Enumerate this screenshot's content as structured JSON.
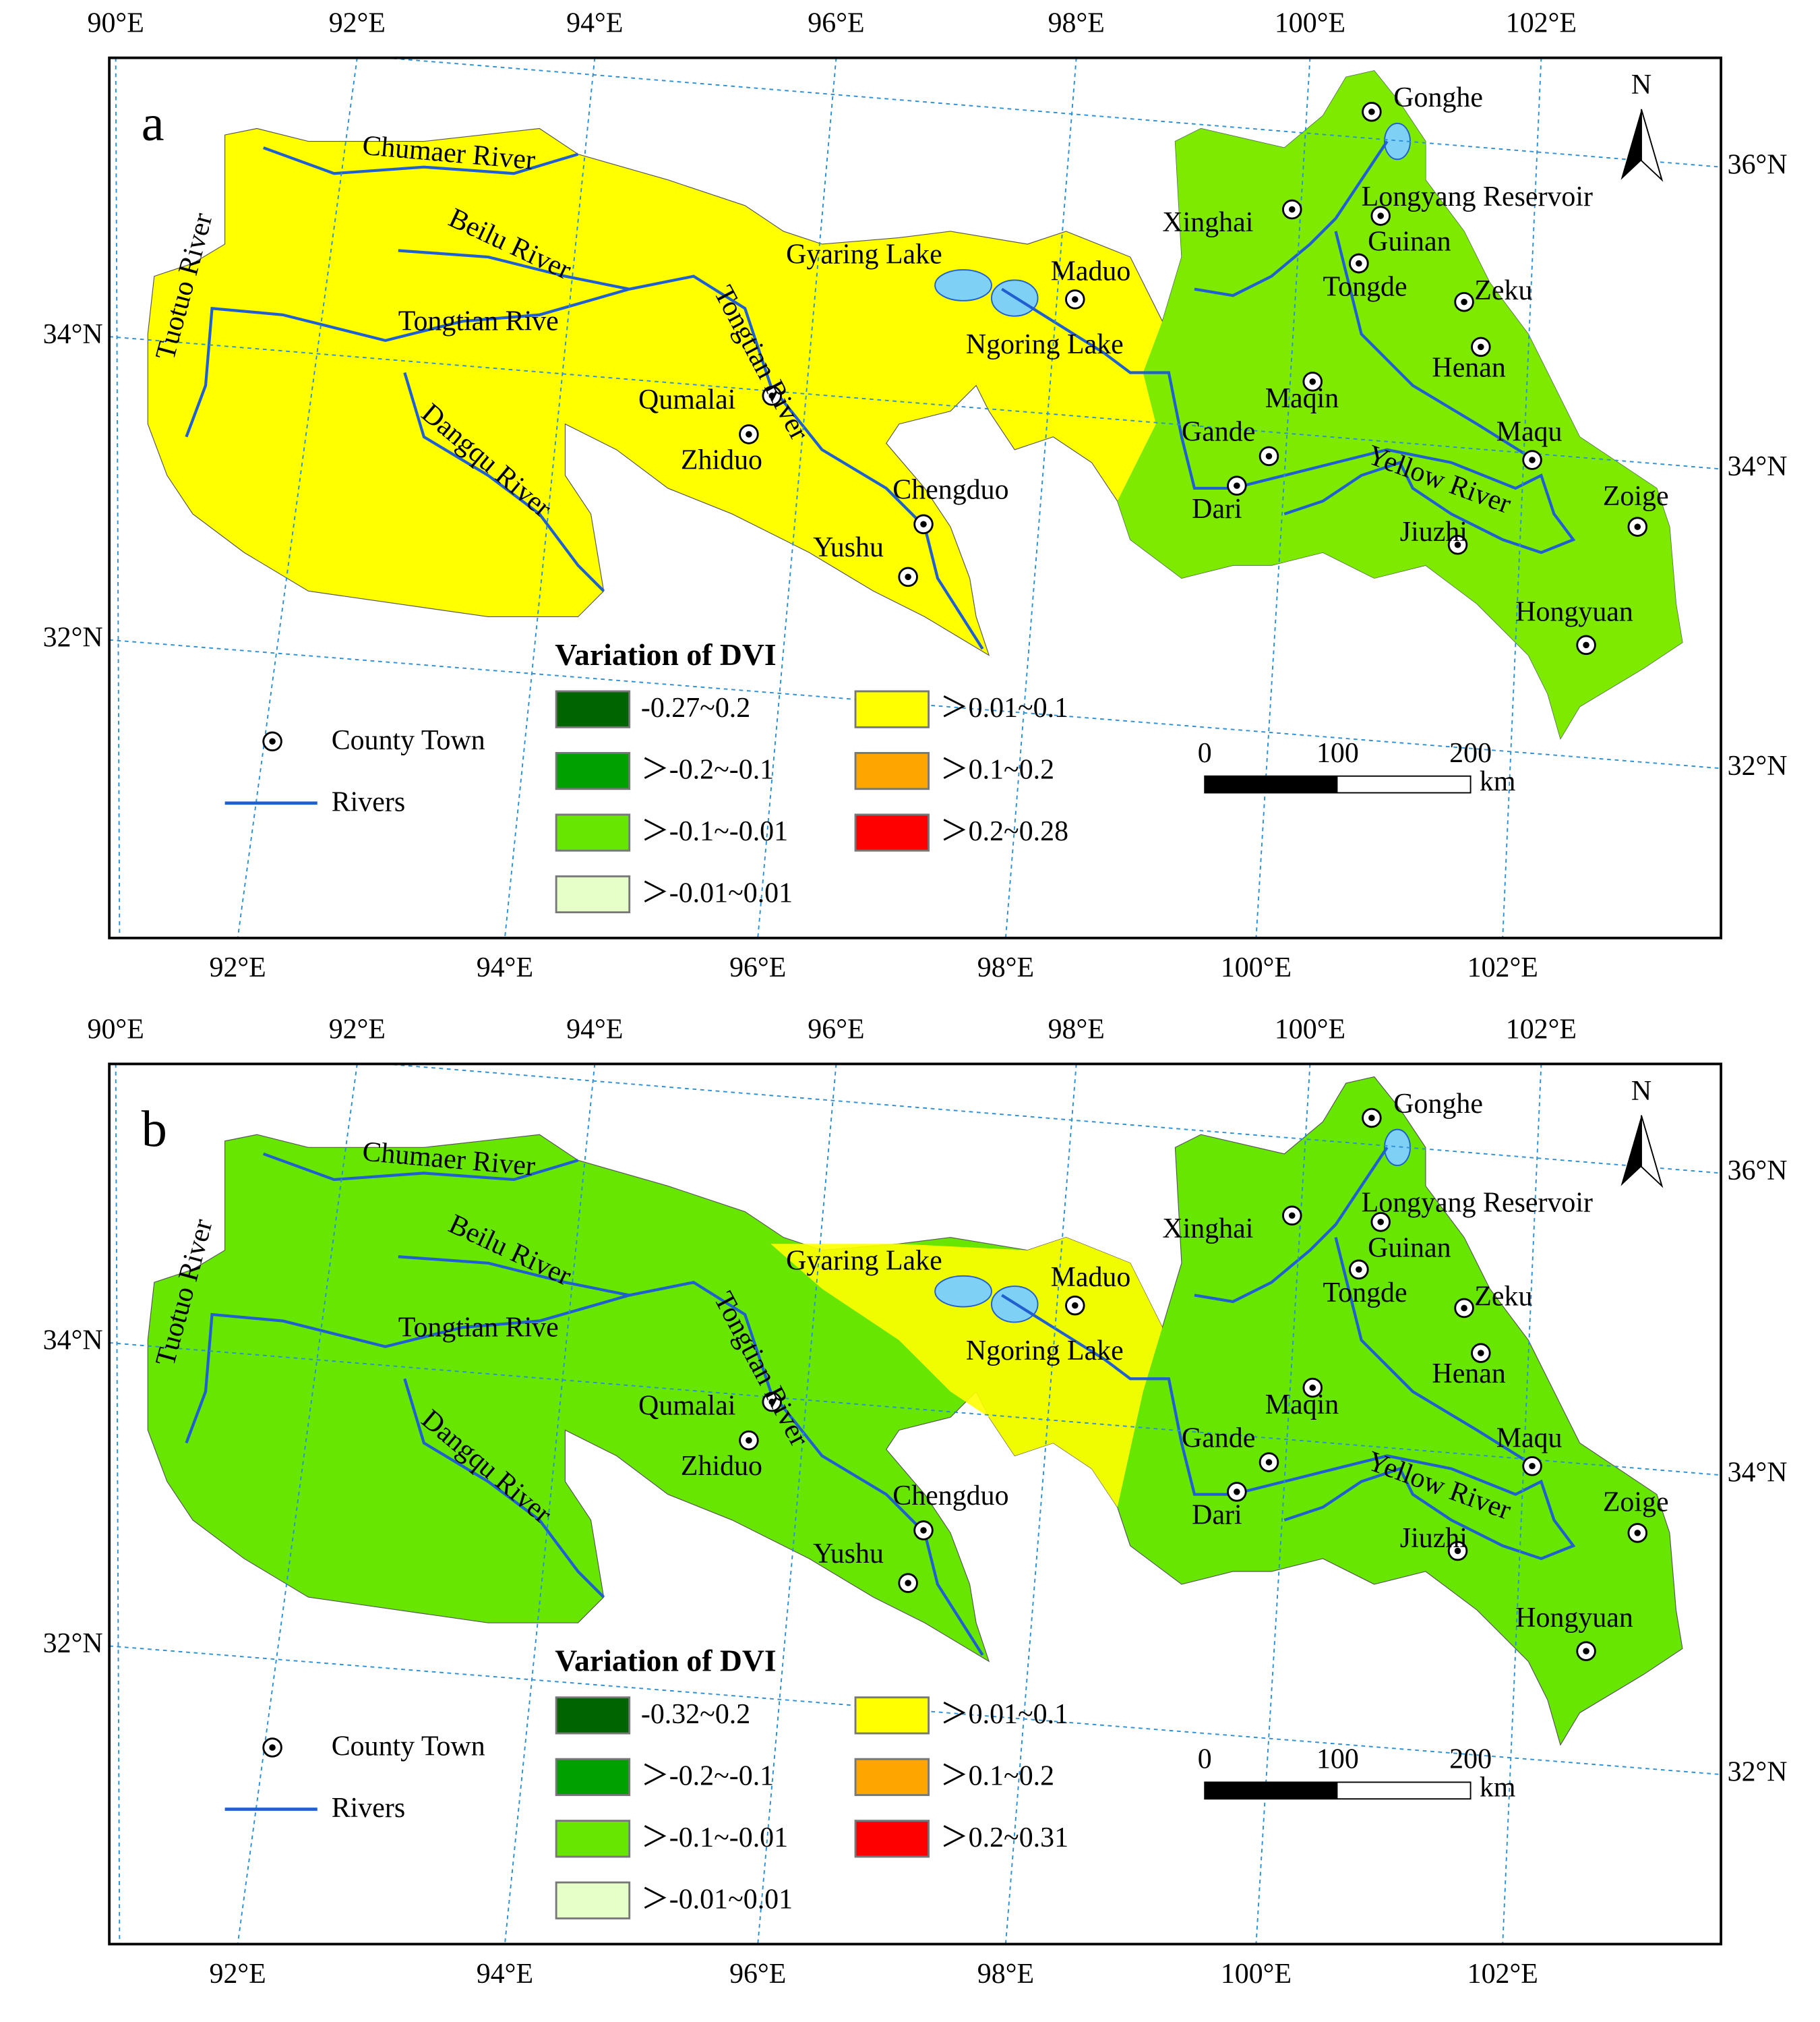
{
  "panels": [
    {
      "letter": "a",
      "top_lon": [
        "90°E",
        "92°E",
        "94°E",
        "96°E",
        "98°E",
        "100°E",
        "102°E"
      ],
      "bottom_lon": [
        "92°E",
        "94°E",
        "96°E",
        "98°E",
        "100°E",
        "102°E"
      ],
      "left_lat": [
        "34°N",
        "32°N"
      ],
      "right_lat": [
        "36°N",
        "34°N",
        "32°N"
      ],
      "places": [
        {
          "label": "Gonghe"
        },
        {
          "label": "Longyang Reservoir"
        },
        {
          "label": "Xinghai"
        },
        {
          "label": "Guinan"
        },
        {
          "label": "Tongde"
        },
        {
          "label": "Zeku"
        },
        {
          "label": "Maduo"
        },
        {
          "label": "Henan"
        },
        {
          "label": "Maqin"
        },
        {
          "label": "Qumalai"
        },
        {
          "label": "Zhiduo"
        },
        {
          "label": "Gande"
        },
        {
          "label": "Maqu"
        },
        {
          "label": "Dari"
        },
        {
          "label": "Chengduo"
        },
        {
          "label": "Zoige"
        },
        {
          "label": "Jiuzhi"
        },
        {
          "label": "Yushu"
        },
        {
          "label": "Hongyuan"
        }
      ],
      "features": [
        "Chumaer River",
        "Beilu River",
        "Tongtian Rive",
        "Tuotuo River",
        "Dangqu River",
        "Tongtian River",
        "Gyaring Lake",
        "Ngoring Lake",
        "Yellow River"
      ],
      "legend_title": "Variation of DVI",
      "legend": [
        {
          "label": "-0.27~0.2",
          "color": "#006400"
        },
        {
          "label": "＞-0.2~-0.1",
          "color": "#00a000"
        },
        {
          "label": "＞-0.1~-0.01",
          "color": "#66e600"
        },
        {
          "label": "＞-0.01~0.01",
          "color": "#e6ffc8"
        },
        {
          "label": "＞0.01~0.1",
          "color": "#ffff00"
        },
        {
          "label": "＞0.1~0.2",
          "color": "#ffa500"
        },
        {
          "label": "＞0.2~0.28",
          "color": "#ff0000"
        }
      ],
      "symbols": [
        "County Town",
        "Rivers"
      ],
      "scale_ticks": [
        0,
        100,
        200
      ],
      "scale_unit": "km",
      "north": "N"
    },
    {
      "letter": "b",
      "top_lon": [
        "90°E",
        "92°E",
        "94°E",
        "96°E",
        "98°E",
        "100°E",
        "102°E"
      ],
      "bottom_lon": [
        "92°E",
        "94°E",
        "96°E",
        "98°E",
        "100°E",
        "102°E"
      ],
      "left_lat": [
        "34°N",
        "32°N"
      ],
      "right_lat": [
        "36°N",
        "34°N",
        "32°N"
      ],
      "places": [
        {
          "label": "Gonghe"
        },
        {
          "label": "Longyang Reservoir"
        },
        {
          "label": "Xinghai"
        },
        {
          "label": "Guinan"
        },
        {
          "label": "Tongde"
        },
        {
          "label": "Zeku"
        },
        {
          "label": "Maduo"
        },
        {
          "label": "Henan"
        },
        {
          "label": "Maqin"
        },
        {
          "label": "Qumalai"
        },
        {
          "label": "Zhiduo"
        },
        {
          "label": "Gande"
        },
        {
          "label": "Maqu"
        },
        {
          "label": "Dari"
        },
        {
          "label": "Chengduo"
        },
        {
          "label": "Zoige"
        },
        {
          "label": "Jiuzhi"
        },
        {
          "label": "Yushu"
        },
        {
          "label": "Hongyuan"
        }
      ],
      "features": [
        "Chumaer River",
        "Beilu River",
        "Tongtian Rive",
        "Tuotuo River",
        "Dangqu River",
        "Tongtian River",
        "Gyaring Lake",
        "Ngoring Lake",
        "Yellow River"
      ],
      "legend_title": "Variation of DVI",
      "legend": [
        {
          "label": "-0.32~0.2",
          "color": "#006400"
        },
        {
          "label": "＞-0.2~-0.1",
          "color": "#00a000"
        },
        {
          "label": "＞-0.1~-0.01",
          "color": "#66e600"
        },
        {
          "label": "＞-0.01~0.01",
          "color": "#e6ffc8"
        },
        {
          "label": "＞0.01~0.1",
          "color": "#ffff00"
        },
        {
          "label": "＞0.1~0.2",
          "color": "#ffa500"
        },
        {
          "label": "＞0.2~0.31",
          "color": "#ff0000"
        }
      ],
      "symbols": [
        "County Town",
        "Rivers"
      ],
      "scale_ticks": [
        0,
        100,
        200
      ],
      "scale_unit": "km",
      "north": "N"
    }
  ]
}
